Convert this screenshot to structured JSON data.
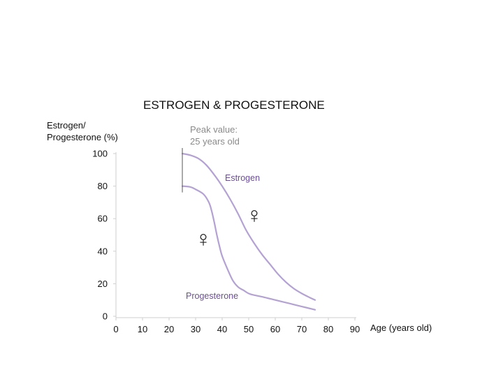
{
  "chart_data": {
    "type": "line",
    "title": "ESTROGEN & PROGESTERONE",
    "ylabel_lines": [
      "Estrogen/",
      "Progesterone (%)"
    ],
    "xlabel": "Age (years old)",
    "xlim": [
      0,
      90
    ],
    "ylim": [
      0,
      100
    ],
    "xticks": [
      0,
      10,
      20,
      30,
      40,
      50,
      60,
      70,
      80,
      90
    ],
    "yticks": [
      0,
      20,
      40,
      60,
      80,
      100
    ],
    "grid": false,
    "series": [
      {
        "name": "Estrogen",
        "color": "#b3a2d2",
        "x": [
          25,
          28,
          31,
          34,
          37,
          40,
          43,
          46,
          49,
          52,
          55,
          58,
          61,
          64,
          67,
          70,
          73,
          75
        ],
        "y": [
          100,
          99,
          97,
          93,
          87,
          80,
          72,
          63,
          53,
          45,
          38,
          32,
          26,
          21,
          17,
          14,
          11.5,
          10
        ]
      },
      {
        "name": "Progesterone",
        "color": "#b3a2d2",
        "x": [
          25,
          28,
          30,
          33,
          35,
          36,
          37,
          38,
          39,
          40,
          42,
          44,
          46,
          48,
          50,
          52,
          55,
          60,
          65,
          70,
          75
        ],
        "y": [
          80,
          79.5,
          78,
          75,
          70,
          65,
          58,
          50,
          43,
          37,
          29,
          22,
          18,
          16,
          14,
          13,
          12,
          10,
          8,
          6,
          4
        ]
      }
    ],
    "annotations": [
      {
        "id": "peak",
        "lines": [
          "Peak value:",
          "25 years old"
        ],
        "x": 25
      },
      {
        "id": "estrogen_label",
        "text": "Estrogen"
      },
      {
        "id": "progesterone_label",
        "text": "Progesterone"
      }
    ],
    "symbols": [
      "♀",
      "♀"
    ]
  }
}
